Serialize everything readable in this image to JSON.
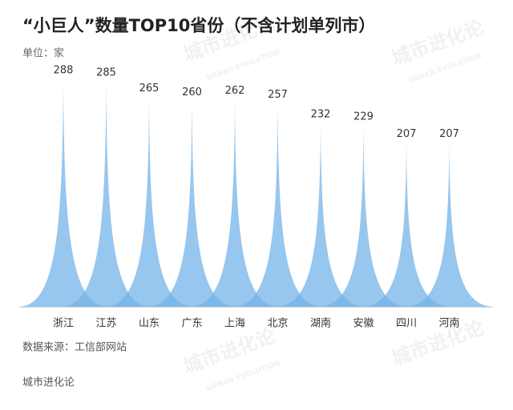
{
  "chart_data": {
    "type": "spike",
    "title": "“小巨人”数量TOP10省份（不含计划单列市）",
    "unit_label": "单位：家",
    "categories": [
      "浙江",
      "江苏",
      "山东",
      "广东",
      "上海",
      "北京",
      "湖南",
      "安徽",
      "四川",
      "河南"
    ],
    "values": [
      288,
      285,
      265,
      260,
      262,
      257,
      232,
      229,
      207,
      207
    ],
    "color": "#74b3e8",
    "source": "数据来源：工信部网站",
    "footer": "城市进化论",
    "watermark": "城市进化论",
    "watermark_sub": "URBAN EVOLUTION"
  }
}
